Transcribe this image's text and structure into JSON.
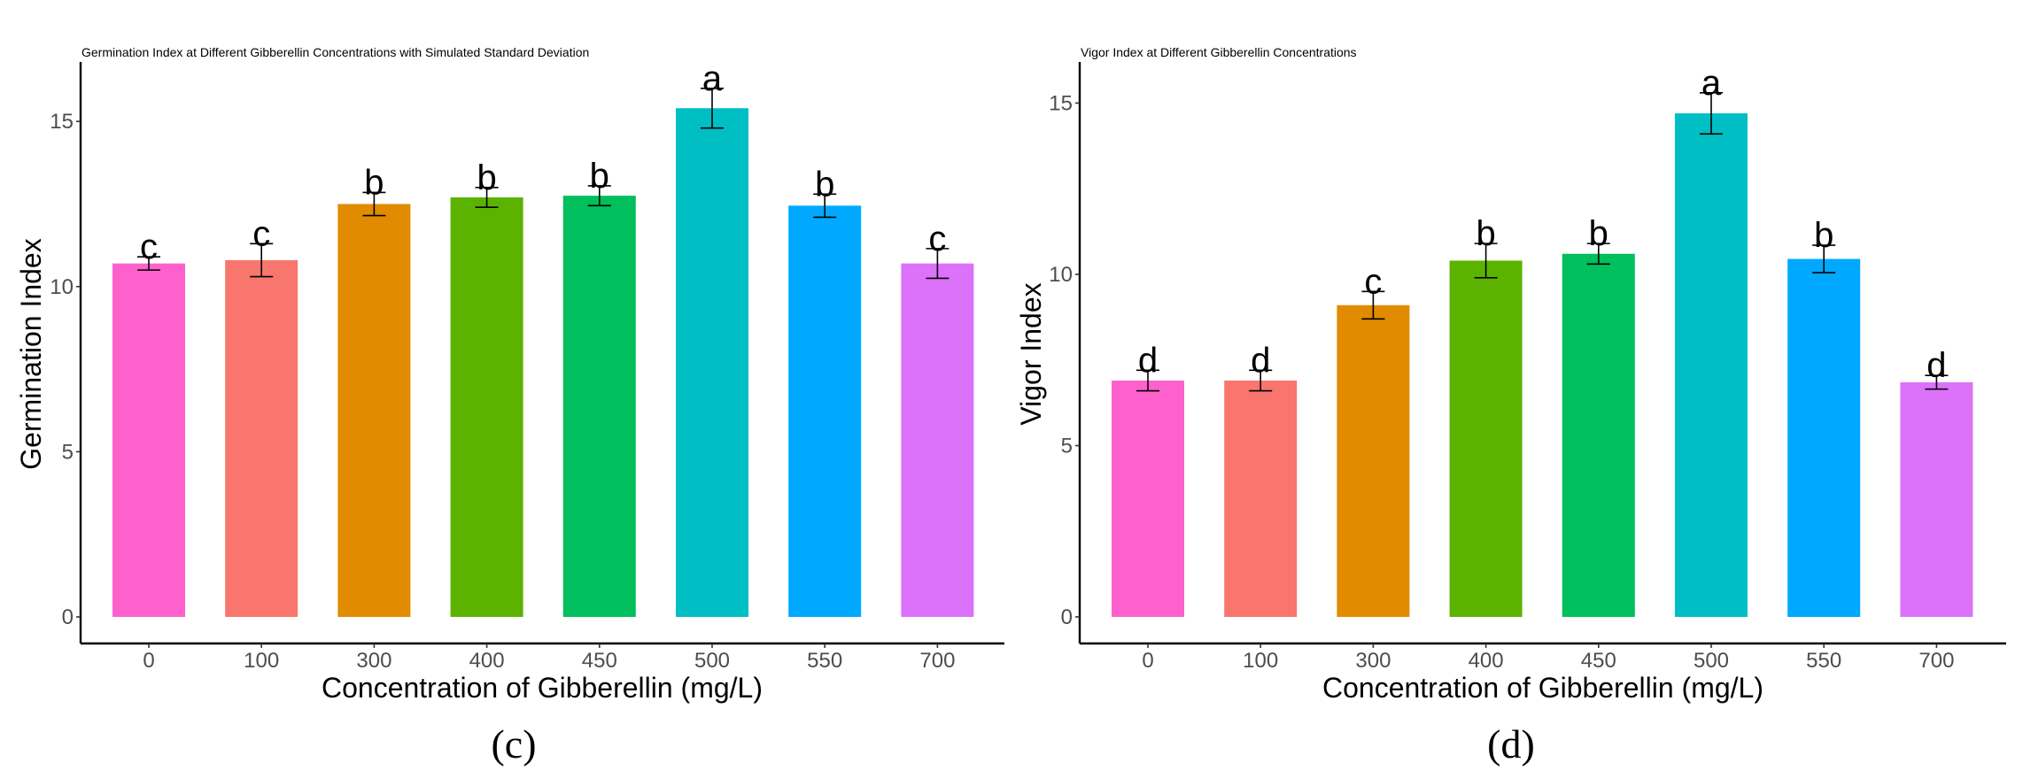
{
  "chart_data": [
    {
      "type": "bar",
      "panel": "(c)",
      "title": "Germination Index at Different Gibberellin Concentrations with Simulated Standard Deviation",
      "xlabel": "Concentration of Gibberellin (mg/L)",
      "ylabel": "Germination Index",
      "categories": [
        "0",
        "100",
        "300",
        "400",
        "450",
        "500",
        "550",
        "700"
      ],
      "values": [
        10.7,
        10.8,
        12.5,
        12.7,
        12.75,
        15.4,
        12.45,
        10.7
      ],
      "errors": [
        0.2,
        0.5,
        0.35,
        0.3,
        0.3,
        0.6,
        0.35,
        0.45
      ],
      "letters": [
        "c",
        "c",
        "b",
        "b",
        "b",
        "a",
        "b",
        "c"
      ],
      "yticks": [
        0,
        5,
        10,
        15
      ],
      "ylim": [
        0,
        16.8
      ]
    },
    {
      "type": "bar",
      "panel": "(d)",
      "title": "Vigor Index at Different Gibberellin Concentrations",
      "xlabel": "Concentration of Gibberellin (mg/L)",
      "ylabel": "Vigor Index",
      "categories": [
        "0",
        "100",
        "300",
        "400",
        "450",
        "500",
        "550",
        "700"
      ],
      "values": [
        6.9,
        6.9,
        9.1,
        10.4,
        10.6,
        14.7,
        10.45,
        6.85
      ],
      "errors": [
        0.3,
        0.3,
        0.4,
        0.5,
        0.3,
        0.6,
        0.4,
        0.2
      ],
      "letters": [
        "d",
        "d",
        "c",
        "b",
        "b",
        "a",
        "b",
        "d"
      ],
      "yticks": [
        0,
        5,
        10,
        15
      ],
      "ylim": [
        0,
        16.2
      ]
    }
  ],
  "colors": [
    "#FF61CC",
    "#F8766D",
    "#E08B00",
    "#5BB300",
    "#00BF5C",
    "#00BFC4",
    "#00A9FF",
    "#DC71FA"
  ]
}
